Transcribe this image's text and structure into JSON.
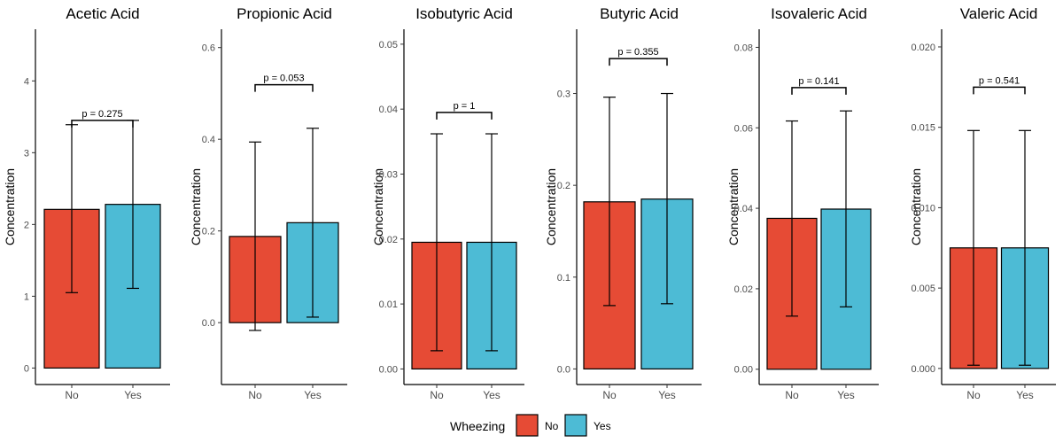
{
  "colors": {
    "No": "#E64B35",
    "Yes": "#4DBBD5"
  },
  "legend": {
    "title": "Wheezing",
    "entries": [
      "No",
      "Yes"
    ],
    "position": "bottom"
  },
  "chart_data": [
    {
      "type": "bar",
      "title": "Acetic Acid",
      "ylabel": "Concentration",
      "categories": [
        "No",
        "Yes"
      ],
      "values": [
        2.21,
        2.28
      ],
      "error_low": [
        1.05,
        1.11
      ],
      "error_high": [
        3.39,
        3.45
      ],
      "ylim": [
        -0.23,
        4.72
      ],
      "yticks": [
        0,
        1,
        2,
        3,
        4
      ],
      "ytick_labels": [
        "0",
        "1",
        "2",
        "3",
        "4"
      ],
      "p_value": "p = 0.275",
      "p_bracket_y": 3.45
    },
    {
      "type": "bar",
      "title": "Propionic Acid",
      "ylabel": "Concentration",
      "categories": [
        "No",
        "Yes"
      ],
      "values": [
        0.188,
        0.218
      ],
      "error_low": [
        -0.017,
        0.012
      ],
      "error_high": [
        0.394,
        0.424
      ],
      "ylim": [
        -0.135,
        0.64
      ],
      "yticks": [
        0,
        0.2,
        0.4,
        0.6
      ],
      "ytick_labels": [
        "0.0",
        "0.2",
        "0.4",
        "0.6"
      ],
      "p_value": "p = 0.053",
      "p_bracket_y": 0.519
    },
    {
      "type": "bar",
      "title": "Isobutyric Acid",
      "ylabel": "Concentration",
      "categories": [
        "No",
        "Yes"
      ],
      "values": [
        0.0195,
        0.0195
      ],
      "error_low": [
        0.0028,
        0.0028
      ],
      "error_high": [
        0.0362,
        0.0362
      ],
      "ylim": [
        -0.0024,
        0.0523
      ],
      "yticks": [
        0,
        0.01,
        0.02,
        0.03,
        0.04,
        0.05
      ],
      "ytick_labels": [
        "0.00",
        "0.01",
        "0.02",
        "0.03",
        "0.04",
        "0.05"
      ],
      "p_value": "p = 1",
      "p_bracket_y": 0.0395
    },
    {
      "type": "bar",
      "title": "Butyric Acid",
      "ylabel": "Concentration",
      "categories": [
        "No",
        "Yes"
      ],
      "values": [
        0.182,
        0.185
      ],
      "error_low": [
        0.069,
        0.071
      ],
      "error_high": [
        0.296,
        0.3
      ],
      "ylim": [
        -0.017,
        0.37
      ],
      "yticks": [
        0,
        0.1,
        0.2,
        0.3
      ],
      "ytick_labels": [
        "0.0",
        "0.1",
        "0.2",
        "0.3"
      ],
      "p_value": "p = 0.355",
      "p_bracket_y": 0.338
    },
    {
      "type": "bar",
      "title": "Isovaleric Acid",
      "ylabel": "Concentration",
      "categories": [
        "No",
        "Yes"
      ],
      "values": [
        0.0375,
        0.0398
      ],
      "error_low": [
        0.0132,
        0.0155
      ],
      "error_high": [
        0.0617,
        0.0642
      ],
      "ylim": [
        -0.0038,
        0.0845
      ],
      "yticks": [
        0,
        0.02,
        0.04,
        0.06,
        0.08
      ],
      "ytick_labels": [
        "0.00",
        "0.02",
        "0.04",
        "0.06",
        "0.08"
      ],
      "p_value": "p = 0.141",
      "p_bracket_y": 0.07
    },
    {
      "type": "bar",
      "title": "Valeric Acid",
      "ylabel": "Concentration",
      "categories": [
        "No",
        "Yes"
      ],
      "values": [
        0.0075,
        0.0075
      ],
      "error_low": [
        0.0002,
        0.0002
      ],
      "error_high": [
        0.0148,
        0.0148
      ],
      "ylim": [
        -0.001,
        0.0211
      ],
      "yticks": [
        0,
        0.005,
        0.01,
        0.015,
        0.02
      ],
      "ytick_labels": [
        "0.000",
        "0.005",
        "0.010",
        "0.015",
        "0.020"
      ],
      "p_value": "p = 0.541",
      "p_bracket_y": 0.0175
    }
  ]
}
